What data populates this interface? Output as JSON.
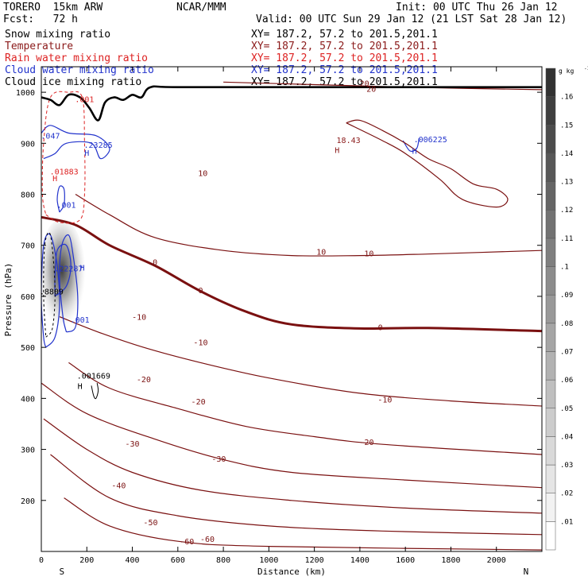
{
  "header": {
    "model": "TORERO  15km ARW",
    "center": "NCAR/MMM",
    "init": "Init: 00 UTC Thu 26 Jan 12",
    "fcst": "Fcst:   72 h",
    "valid": "Valid: 00 UTC Sun 29 Jan 12 (21 LST Sat 28 Jan 12)"
  },
  "fields": [
    {
      "name": "Snow mixing ratio",
      "xy": "XY= 187.2, 57.2 to 201.5,201.1",
      "color": "#000000"
    },
    {
      "name": "Temperature",
      "xy": "XY= 187.2, 57.2 to 201.5,201.1",
      "color": "#8b1a1a"
    },
    {
      "name": "Rain water mixing ratio",
      "xy": "XY= 187.2, 57.2 to 201.5,201.1",
      "color": "#dd2222"
    },
    {
      "name": "Cloud water mixing ratio",
      "xy": "XY= 187.2, 57.2 to 201.5,201.1",
      "color": "#2233cc"
    },
    {
      "name": "Cloud ice mixing ratio",
      "xy": "XY= 187.2, 57.2 to 201.5,201.1",
      "color": "#000000"
    }
  ],
  "chart_data": {
    "type": "cross-section",
    "xlabel": "Distance (km)",
    "ylabel": "Pressure (hPa)",
    "xlim": [
      0,
      2200
    ],
    "ylim": [
      1050,
      100
    ],
    "x_ticks": [
      0,
      200,
      400,
      600,
      800,
      1000,
      1200,
      1400,
      1600,
      1800,
      2000
    ],
    "y_ticks": [
      200,
      300,
      400,
      500,
      600,
      700,
      800,
      900,
      1000
    ],
    "x_end_labels": {
      "left": "S",
      "right": "N"
    },
    "colorbar": {
      "unit": "g kg",
      "unit_exponent": "-1",
      "ticks": [
        ".01",
        ".02",
        ".03",
        ".04",
        ".05",
        ".06",
        ".07",
        ".08",
        ".09",
        ".1",
        ".11",
        ".12",
        ".13",
        ".14",
        ".15",
        ".16"
      ]
    },
    "temperature_contours": [
      {
        "level": "-60",
        "points": [
          [
            100,
            205
          ],
          [
            300,
            150
          ],
          [
            600,
            120
          ],
          [
            1000,
            110
          ],
          [
            2200,
            103
          ]
        ],
        "labels": [
          [
            640,
            120
          ],
          [
            730,
            125
          ]
        ]
      },
      {
        "level": "-50",
        "points": [
          [
            40,
            290
          ],
          [
            300,
            205
          ],
          [
            600,
            170
          ],
          [
            1000,
            150
          ],
          [
            1500,
            140
          ],
          [
            2200,
            133
          ]
        ],
        "labels": [
          [
            480,
            158
          ]
        ]
      },
      {
        "level": "-40",
        "points": [
          [
            10,
            360
          ],
          [
            200,
            300
          ],
          [
            400,
            255
          ],
          [
            700,
            220
          ],
          [
            1100,
            200
          ],
          [
            1600,
            185
          ],
          [
            2200,
            175
          ]
        ],
        "labels": [
          [
            340,
            230
          ]
        ]
      },
      {
        "level": "-30",
        "points": [
          [
            0,
            430
          ],
          [
            200,
            370
          ],
          [
            500,
            320
          ],
          [
            800,
            280
          ],
          [
            1100,
            255
          ],
          [
            1600,
            240
          ],
          [
            2200,
            225
          ]
        ],
        "labels": [
          [
            400,
            312
          ],
          [
            780,
            282
          ]
        ]
      },
      {
        "level": "-20",
        "points": [
          [
            120,
            470
          ],
          [
            300,
            420
          ],
          [
            600,
            380
          ],
          [
            900,
            345
          ],
          [
            1200,
            325
          ],
          [
            1500,
            310
          ],
          [
            2200,
            290
          ]
        ],
        "labels": [
          [
            450,
            438
          ],
          [
            690,
            394
          ],
          [
            1430,
            315
          ]
        ]
      },
      {
        "level": "-10",
        "points": [
          [
            80,
            560
          ],
          [
            250,
            530
          ],
          [
            450,
            500
          ],
          [
            700,
            470
          ],
          [
            1000,
            440
          ],
          [
            1400,
            410
          ],
          [
            1800,
            395
          ],
          [
            2200,
            385
          ]
        ],
        "labels": [
          [
            430,
            560
          ],
          [
            700,
            510
          ],
          [
            1510,
            398
          ]
        ]
      },
      {
        "level": "0",
        "points": [
          [
            0,
            755
          ],
          [
            150,
            740
          ],
          [
            300,
            700
          ],
          [
            500,
            660
          ],
          [
            700,
            610
          ],
          [
            900,
            570
          ],
          [
            1100,
            545
          ],
          [
            1400,
            537
          ],
          [
            1700,
            538
          ],
          [
            2200,
            532
          ]
        ],
        "labels": [
          [
            500,
            668
          ],
          [
            700,
            612
          ],
          [
            1490,
            540
          ]
        ]
      },
      {
        "level": "10",
        "points": [
          [
            150,
            800
          ],
          [
            300,
            760
          ],
          [
            500,
            715
          ],
          [
            800,
            690
          ],
          [
            1100,
            680
          ],
          [
            1400,
            680
          ],
          [
            1700,
            683
          ],
          [
            2200,
            690
          ]
        ],
        "labels": [
          [
            710,
            842
          ],
          [
            1230,
            688
          ],
          [
            1440,
            685
          ]
        ]
      },
      {
        "level": "20",
        "points": [
          [
            800,
            1020
          ],
          [
            1200,
            1015
          ],
          [
            1600,
            1010
          ],
          [
            2200,
            1005
          ]
        ],
        "labels": [
          [
            1420,
            1018
          ],
          [
            1450,
            1007
          ]
        ]
      }
    ],
    "maxima": [
      {
        "label": ".001669",
        "x": 230,
        "p": 445,
        "color": "#000000"
      },
      {
        "label": ".001",
        "x": 170,
        "p": 555,
        "color": "#2233cc"
      },
      {
        "label": ".8809",
        "x": 45,
        "p": 610,
        "color": "#000000"
      },
      {
        "label": ".22287",
        "x": 120,
        "p": 655,
        "color": "#2233cc"
      },
      {
        "label": ".001",
        "x": 110,
        "p": 780,
        "color": "#2233cc"
      },
      {
        "label": ".01883",
        "x": 100,
        "p": 845,
        "color": "#dd2222"
      },
      {
        "label": ".23285",
        "x": 250,
        "p": 897,
        "color": "#2233cc"
      },
      {
        "label": ".047",
        "x": 40,
        "p": 915,
        "color": "#2233cc"
      },
      {
        "label": ".001",
        "x": 190,
        "p": 987,
        "color": "#dd2222"
      },
      {
        "label": "18.43",
        "x": 1350,
        "p": 907,
        "color": "#8b1a1a"
      },
      {
        "label": ".006225",
        "x": 1710,
        "p": 908,
        "color": "#2233cc"
      }
    ],
    "high_markers": [
      {
        "x": 170,
        "p": 425,
        "color": "#000000"
      },
      {
        "x": 180,
        "p": 657,
        "color": "#2233cc"
      },
      {
        "x": 60,
        "p": 832,
        "color": "#dd2222"
      },
      {
        "x": 200,
        "p": 882,
        "color": "#2233cc"
      },
      {
        "x": 1300,
        "p": 887,
        "color": "#8b1a1a"
      },
      {
        "x": 1640,
        "p": 886,
        "color": "#2233cc"
      }
    ],
    "terrain": [
      [
        0,
        990
      ],
      [
        40,
        985
      ],
      [
        80,
        975
      ],
      [
        120,
        995
      ],
      [
        170,
        990
      ],
      [
        210,
        970
      ],
      [
        250,
        945
      ],
      [
        280,
        980
      ],
      [
        320,
        990
      ],
      [
        360,
        985
      ],
      [
        400,
        995
      ],
      [
        440,
        990
      ],
      [
        480,
        1010
      ],
      [
        600,
        1010
      ],
      [
        1200,
        1010
      ],
      [
        2200,
        1010
      ]
    ]
  }
}
